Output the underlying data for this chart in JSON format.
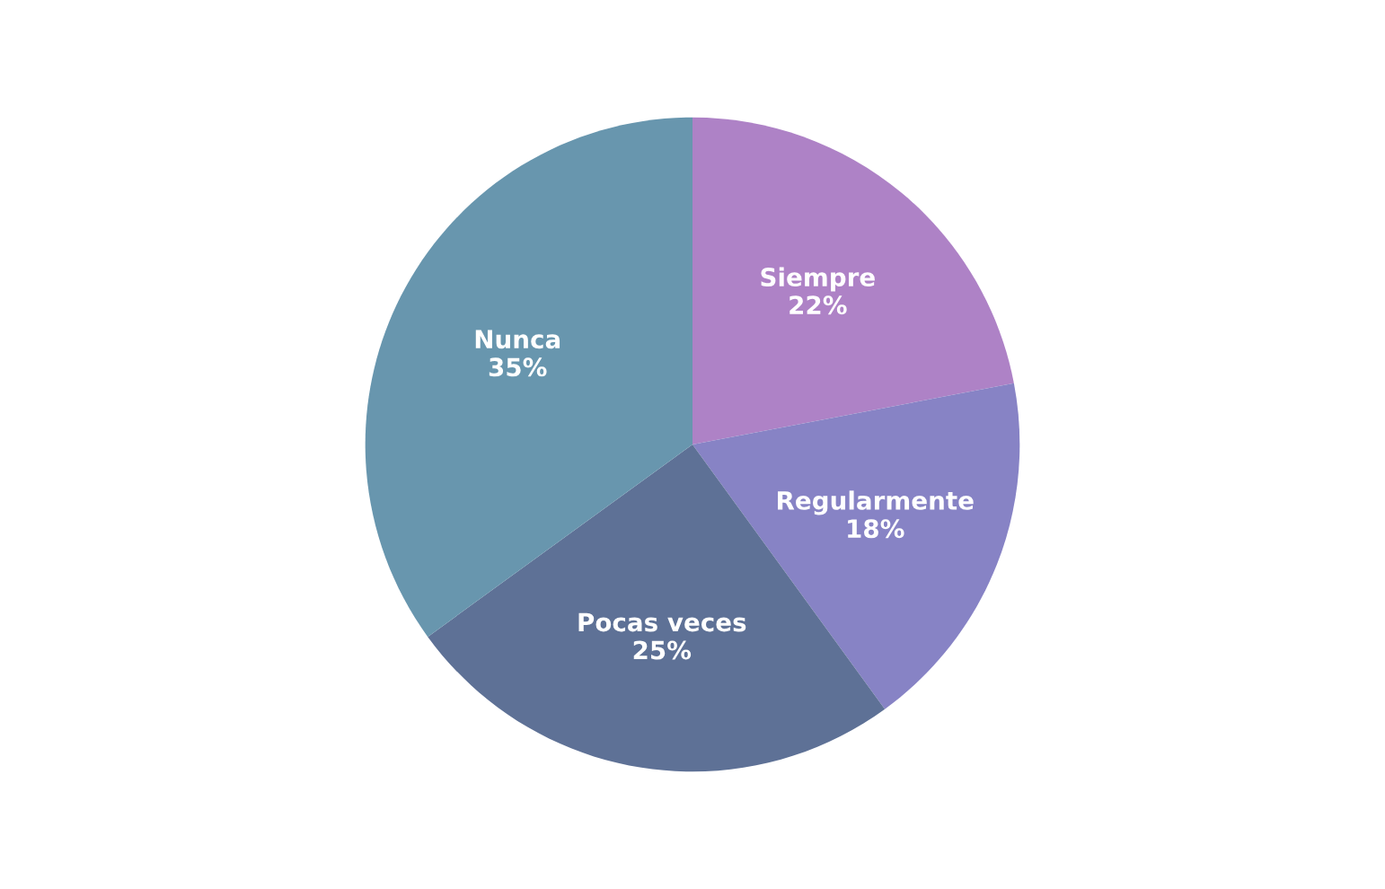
{
  "chart_data": {
    "type": "pie",
    "categories": [
      "Siempre",
      "Regularmente",
      "Pocas veces",
      "Nunca"
    ],
    "values": [
      22,
      18,
      25,
      35
    ],
    "colors": [
      "#ae82c6",
      "#8783c5",
      "#5e7196",
      "#6896ae"
    ],
    "value_labels": [
      "22%",
      "18%",
      "25%",
      "35%"
    ]
  }
}
